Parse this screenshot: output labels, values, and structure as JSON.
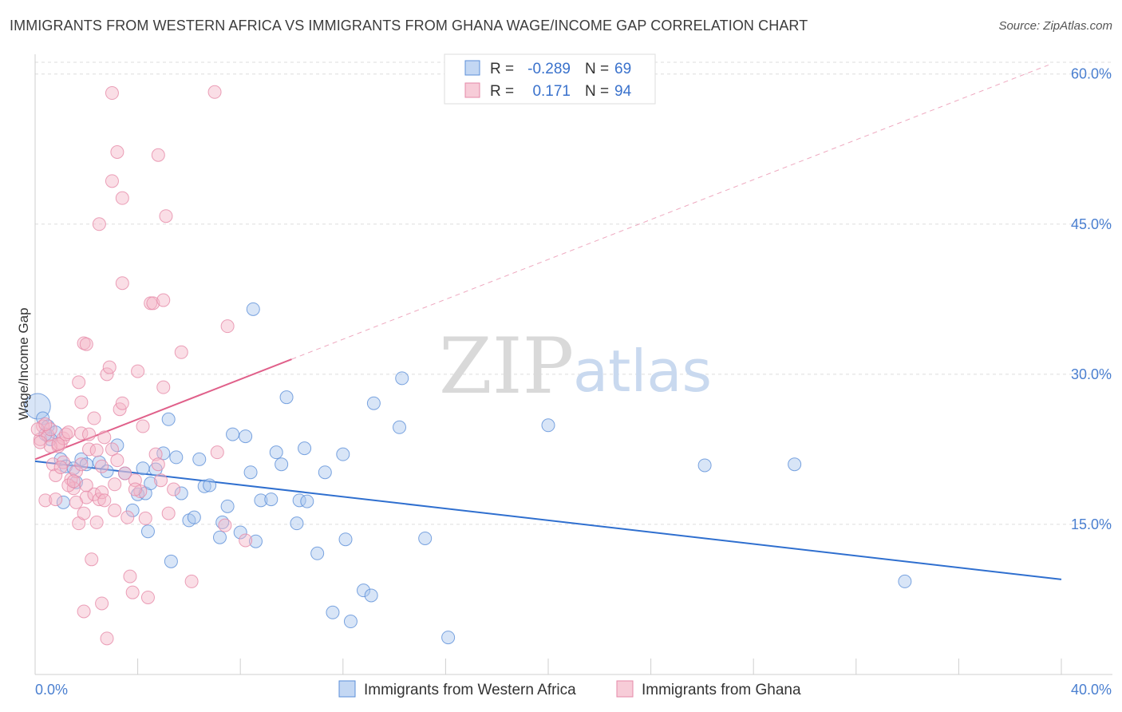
{
  "header": {
    "title": "IMMIGRANTS FROM WESTERN AFRICA VS IMMIGRANTS FROM GHANA WAGE/INCOME GAP CORRELATION CHART",
    "source": "Source: ZipAtlas.com"
  },
  "watermark": {
    "zip": "ZIP",
    "atlas": "atlas"
  },
  "colors": {
    "blue_fill": "#a9c6ee",
    "blue_stroke": "#5b8fd8",
    "blue_line": "#2f6fcf",
    "pink_fill": "#f4b6c8",
    "pink_stroke": "#e689a8",
    "pink_line": "#e0608a",
    "axis_text": "#4a7fd0",
    "grid": "#dddddd"
  },
  "legend": {
    "r_label": "R =",
    "n_label": "N =",
    "items": [
      {
        "r": "-0.289",
        "n": "69"
      },
      {
        "r": "0.171",
        "n": "94"
      }
    ]
  },
  "chart_data": {
    "type": "scatter",
    "title": "IMMIGRANTS FROM WESTERN AFRICA VS IMMIGRANTS FROM GHANA WAGE/INCOME GAP CORRELATION CHART",
    "xlabel": "",
    "ylabel": "Wage/Income Gap",
    "xlim": [
      0,
      40
    ],
    "ylim": [
      0,
      65
    ],
    "x_tick_labels": [
      "0.0%",
      "40.0%"
    ],
    "y_ticks": [
      15,
      30,
      45,
      60
    ],
    "y_tick_labels": [
      "15.0%",
      "30.0%",
      "45.0%",
      "60.0%"
    ],
    "grid": true,
    "legend_position": "top-center",
    "series": [
      {
        "name": "Immigrants from Western Africa",
        "color": "#5b8fd8",
        "trend": {
          "x": [
            0,
            40
          ],
          "y": [
            21.3,
            9.5
          ],
          "style": "solid"
        },
        "points": [
          [
            0.1,
            26.8
          ],
          [
            0.3,
            25.6
          ],
          [
            0.5,
            24.8
          ],
          [
            0.8,
            24.2
          ],
          [
            0.6,
            23.5
          ],
          [
            0.4,
            24.0
          ],
          [
            1.0,
            21.5
          ],
          [
            1.2,
            20.8
          ],
          [
            1.5,
            20.6
          ],
          [
            1.8,
            21.5
          ],
          [
            2.0,
            21.0
          ],
          [
            2.5,
            21.2
          ],
          [
            1.6,
            19.2
          ],
          [
            1.1,
            17.2
          ],
          [
            2.8,
            20.3
          ],
          [
            3.2,
            22.9
          ],
          [
            3.5,
            20.1
          ],
          [
            3.8,
            16.4
          ],
          [
            4.0,
            18.0
          ],
          [
            4.3,
            18.1
          ],
          [
            4.2,
            20.6
          ],
          [
            4.5,
            19.1
          ],
          [
            4.7,
            20.5
          ],
          [
            5.0,
            22.1
          ],
          [
            4.4,
            14.3
          ],
          [
            5.5,
            21.7
          ],
          [
            5.2,
            25.5
          ],
          [
            5.3,
            11.3
          ],
          [
            5.7,
            18.1
          ],
          [
            6.0,
            15.4
          ],
          [
            6.2,
            15.7
          ],
          [
            6.4,
            21.5
          ],
          [
            6.6,
            18.8
          ],
          [
            6.8,
            18.9
          ],
          [
            7.2,
            13.7
          ],
          [
            7.5,
            16.8
          ],
          [
            7.7,
            24.0
          ],
          [
            7.3,
            15.2
          ],
          [
            8.0,
            14.2
          ],
          [
            8.2,
            23.8
          ],
          [
            8.4,
            20.2
          ],
          [
            8.6,
            13.3
          ],
          [
            8.8,
            17.4
          ],
          [
            9.2,
            17.5
          ],
          [
            9.4,
            22.2
          ],
          [
            9.6,
            21.0
          ],
          [
            9.8,
            27.7
          ],
          [
            10.3,
            17.4
          ],
          [
            10.6,
            17.3
          ],
          [
            10.2,
            15.1
          ],
          [
            10.5,
            22.6
          ],
          [
            11.0,
            12.1
          ],
          [
            11.3,
            20.2
          ],
          [
            12.0,
            22.0
          ],
          [
            12.1,
            13.5
          ],
          [
            11.6,
            6.2
          ],
          [
            8.5,
            36.5
          ],
          [
            12.3,
            5.3
          ],
          [
            12.8,
            8.4
          ],
          [
            13.1,
            7.9
          ],
          [
            13.2,
            27.1
          ],
          [
            14.2,
            24.7
          ],
          [
            14.3,
            29.6
          ],
          [
            15.2,
            13.6
          ],
          [
            16.1,
            3.7
          ],
          [
            20.0,
            24.9
          ],
          [
            26.1,
            20.9
          ],
          [
            29.6,
            21.0
          ],
          [
            33.9,
            9.3
          ]
        ]
      },
      {
        "name": "Immigrants from Ghana",
        "color": "#e689a8",
        "trend": {
          "x": [
            0,
            10
          ],
          "y": [
            21.5,
            31.5
          ],
          "style": "solid",
          "dashed_extension": {
            "x": [
              10,
              39.5
            ],
            "y": [
              31.5,
              60.9
            ]
          }
        },
        "points": [
          [
            0.2,
            23.5
          ],
          [
            0.3,
            24.8
          ],
          [
            0.5,
            23.9
          ],
          [
            0.6,
            24.5
          ],
          [
            0.4,
            17.4
          ],
          [
            0.7,
            21.0
          ],
          [
            0.8,
            19.9
          ],
          [
            0.9,
            22.8
          ],
          [
            1.0,
            23.1
          ],
          [
            1.1,
            23.6
          ],
          [
            1.2,
            24.0
          ],
          [
            1.3,
            24.2
          ],
          [
            1.4,
            19.5
          ],
          [
            1.5,
            18.6
          ],
          [
            1.6,
            20.3
          ],
          [
            1.7,
            15.1
          ],
          [
            1.8,
            21.0
          ],
          [
            1.9,
            16.1
          ],
          [
            2.0,
            17.7
          ],
          [
            2.1,
            22.5
          ],
          [
            2.2,
            11.5
          ],
          [
            2.3,
            18.0
          ],
          [
            2.4,
            15.2
          ],
          [
            2.5,
            17.5
          ],
          [
            2.6,
            20.8
          ],
          [
            2.7,
            23.7
          ],
          [
            2.8,
            30.0
          ],
          [
            2.9,
            30.7
          ],
          [
            3.0,
            22.5
          ],
          [
            3.1,
            16.4
          ],
          [
            3.2,
            21.4
          ],
          [
            3.3,
            26.5
          ],
          [
            3.4,
            27.1
          ],
          [
            3.5,
            20.1
          ],
          [
            3.6,
            15.7
          ],
          [
            3.7,
            9.8
          ],
          [
            3.8,
            8.2
          ],
          [
            3.9,
            19.4
          ],
          [
            4.0,
            30.3
          ],
          [
            4.1,
            18.3
          ],
          [
            4.2,
            24.8
          ],
          [
            4.3,
            15.6
          ],
          [
            4.4,
            7.7
          ],
          [
            4.5,
            37.1
          ],
          [
            4.6,
            37.1
          ],
          [
            4.7,
            22.0
          ],
          [
            4.8,
            21.0
          ],
          [
            4.9,
            19.4
          ],
          [
            5.0,
            28.7
          ],
          [
            5.1,
            45.8
          ],
          [
            5.2,
            16.1
          ],
          [
            5.4,
            18.5
          ],
          [
            3.4,
            39.1
          ],
          [
            3.0,
            58.1
          ],
          [
            3.2,
            52.2
          ],
          [
            4.8,
            51.9
          ],
          [
            3.0,
            49.3
          ],
          [
            3.4,
            47.6
          ],
          [
            2.5,
            45.0
          ],
          [
            5.0,
            37.4
          ],
          [
            1.9,
            33.1
          ],
          [
            2.0,
            33.0
          ],
          [
            1.7,
            29.2
          ],
          [
            1.8,
            27.2
          ],
          [
            5.7,
            32.2
          ],
          [
            7.0,
            58.2
          ],
          [
            7.5,
            34.8
          ],
          [
            6.1,
            9.3
          ],
          [
            7.1,
            22.2
          ],
          [
            7.4,
            14.9
          ],
          [
            8.2,
            13.4
          ],
          [
            1.9,
            6.3
          ],
          [
            2.6,
            7.1
          ],
          [
            2.8,
            3.6
          ],
          [
            3.1,
            19.0
          ],
          [
            0.1,
            24.5
          ],
          [
            0.2,
            23.2
          ],
          [
            0.4,
            25.0
          ],
          [
            0.6,
            22.8
          ],
          [
            0.9,
            23.0
          ],
          [
            1.1,
            21.2
          ],
          [
            1.3,
            18.9
          ],
          [
            1.5,
            19.3
          ],
          [
            1.6,
            17.2
          ],
          [
            1.8,
            24.1
          ],
          [
            2.0,
            18.9
          ],
          [
            2.1,
            24.0
          ],
          [
            2.3,
            25.6
          ],
          [
            2.4,
            22.4
          ],
          [
            2.6,
            18.2
          ],
          [
            2.7,
            17.4
          ],
          [
            1.0,
            20.7
          ],
          [
            0.8,
            17.5
          ],
          [
            3.9,
            18.5
          ]
        ]
      }
    ]
  },
  "bottom_legend": {
    "items": [
      {
        "label": "Immigrants from Western Africa"
      },
      {
        "label": "Immigrants from Ghana"
      }
    ]
  }
}
